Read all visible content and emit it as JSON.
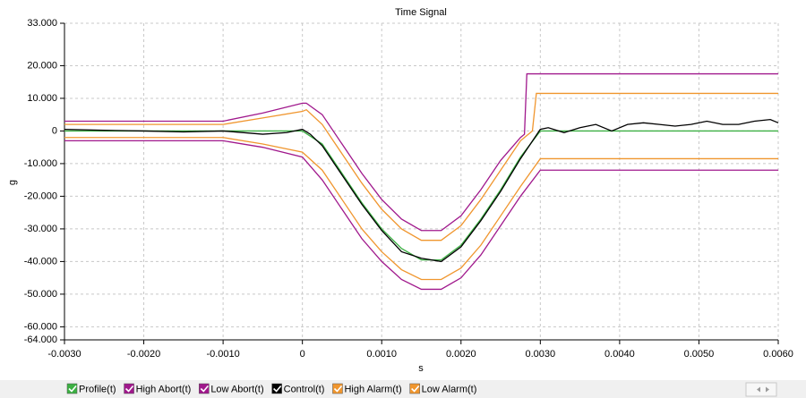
{
  "chart_data": {
    "type": "line",
    "title": "Time Signal",
    "xlabel": "s",
    "ylabel": "g",
    "xlim": [
      -0.003,
      0.006
    ],
    "ylim": [
      -64,
      33
    ],
    "grid": true,
    "legend": "bottom",
    "xticks": [
      {
        "value": -0.003,
        "label": "-0.0030"
      },
      {
        "value": -0.002,
        "label": "-0.0020"
      },
      {
        "value": -0.001,
        "label": "-0.0010"
      },
      0,
      {
        "value": 0.001,
        "label": "0.0010"
      },
      {
        "value": 0.002,
        "label": "0.0020"
      },
      {
        "value": 0.003,
        "label": "0.0030"
      },
      {
        "value": 0.004,
        "label": "0.0040"
      },
      {
        "value": 0.005,
        "label": "0.0050"
      },
      {
        "value": 0.006,
        "label": "0.0060"
      }
    ],
    "yticks": [
      {
        "value": 33,
        "label": "33.000"
      },
      {
        "value": 20,
        "label": "20.000"
      },
      {
        "value": 10,
        "label": "10.000"
      },
      0,
      {
        "value": -10,
        "label": "-10.000"
      },
      {
        "value": -20,
        "label": "-20.000"
      },
      {
        "value": -30,
        "label": "-30.000"
      },
      {
        "value": -40,
        "label": "-40.000"
      },
      {
        "value": -50,
        "label": "-50.000"
      },
      {
        "value": -60,
        "label": "-60.000"
      },
      {
        "value": -64,
        "label": "-64.000"
      }
    ],
    "series": [
      {
        "name": "Profile(t)",
        "color": "#3cb043",
        "x": [
          -0.003,
          -0.001,
          0,
          0.00025,
          0.0005,
          0.00075,
          0.001,
          0.00125,
          0.0015,
          0.00175,
          0.002,
          0.00225,
          0.0025,
          0.00275,
          0.003,
          0.006
        ],
        "values": [
          0,
          0,
          0,
          -4,
          -13,
          -22,
          -30,
          -36,
          -39.5,
          -39.5,
          -35,
          -27,
          -18,
          -8,
          0,
          0
        ]
      },
      {
        "name": "High Abort(t)",
        "color": "#a0188c",
        "x": [
          -0.003,
          -0.001,
          -0.0005,
          0,
          5e-05,
          0.00025,
          0.0005,
          0.00075,
          0.001,
          0.00125,
          0.0015,
          0.00175,
          0.002,
          0.00225,
          0.0025,
          0.00275,
          0.0028,
          0.00283,
          0.006
        ],
        "values": [
          3,
          3,
          5.5,
          8.5,
          8.5,
          5,
          -4,
          -13,
          -21,
          -27,
          -30.5,
          -30.5,
          -26,
          -18,
          -9,
          -2,
          -1,
          17.5,
          17.5
        ]
      },
      {
        "name": "Low Abort(t)",
        "color": "#a0188c",
        "x": [
          -0.003,
          -0.001,
          -0.0005,
          0,
          0.00025,
          0.0005,
          0.00075,
          0.001,
          0.00125,
          0.0015,
          0.00175,
          0.002,
          0.00225,
          0.0025,
          0.00275,
          0.003,
          0.006
        ],
        "values": [
          -3,
          -3,
          -5,
          -8,
          -15,
          -24,
          -33,
          -40,
          -45.5,
          -48.5,
          -48.5,
          -45,
          -38,
          -29,
          -20,
          -12,
          -12
        ]
      },
      {
        "name": "Control(t)",
        "color": "#000000",
        "label_color": "#cc0000",
        "x": [
          -0.003,
          -0.0025,
          -0.002,
          -0.0015,
          -0.001,
          -0.0005,
          -0.0002,
          0,
          0.0001,
          0.00025,
          0.0005,
          0.00075,
          0.001,
          0.00125,
          0.0015,
          0.00175,
          0.002,
          0.00225,
          0.0025,
          0.00275,
          0.003,
          0.0031,
          0.0033,
          0.0035,
          0.0037,
          0.0039,
          0.0041,
          0.0043,
          0.0045,
          0.0047,
          0.0049,
          0.0051,
          0.0053,
          0.0055,
          0.0057,
          0.0059,
          0.006
        ],
        "values": [
          0.5,
          0.2,
          0,
          -0.3,
          0,
          -1,
          -0.5,
          0.5,
          -1,
          -4.5,
          -13.5,
          -22.5,
          -30.5,
          -37,
          -39,
          -40,
          -35.5,
          -27.5,
          -18.5,
          -8.5,
          0.5,
          1,
          -0.5,
          1,
          2,
          0,
          2,
          2.5,
          2,
          1.5,
          2,
          3,
          2,
          2,
          3,
          3.5,
          2.5
        ]
      },
      {
        "name": "High Alarm(t)",
        "color": "#f0962e",
        "x": [
          -0.003,
          -0.001,
          -0.0005,
          0,
          5e-05,
          0.00025,
          0.0005,
          0.00075,
          0.001,
          0.00125,
          0.0015,
          0.00175,
          0.002,
          0.00225,
          0.0025,
          0.00275,
          0.0029,
          0.00295,
          0.006
        ],
        "values": [
          2,
          2,
          4,
          6,
          6.5,
          2,
          -7,
          -16,
          -24,
          -30,
          -33.5,
          -33.5,
          -29,
          -21,
          -12,
          -3,
          0,
          11.5,
          11.5
        ]
      },
      {
        "name": "Low Alarm(t)",
        "color": "#f0962e",
        "x": [
          -0.003,
          -0.001,
          -0.0005,
          0,
          0.00025,
          0.0005,
          0.00075,
          0.001,
          0.00125,
          0.0015,
          0.00175,
          0.002,
          0.00225,
          0.0025,
          0.00275,
          0.003,
          0.006
        ],
        "values": [
          -2,
          -2,
          -4,
          -6.5,
          -12,
          -21,
          -30,
          -37,
          -42.5,
          -45.5,
          -45.5,
          -42,
          -35,
          -26,
          -17,
          -8.5,
          -8.5
        ]
      }
    ]
  }
}
